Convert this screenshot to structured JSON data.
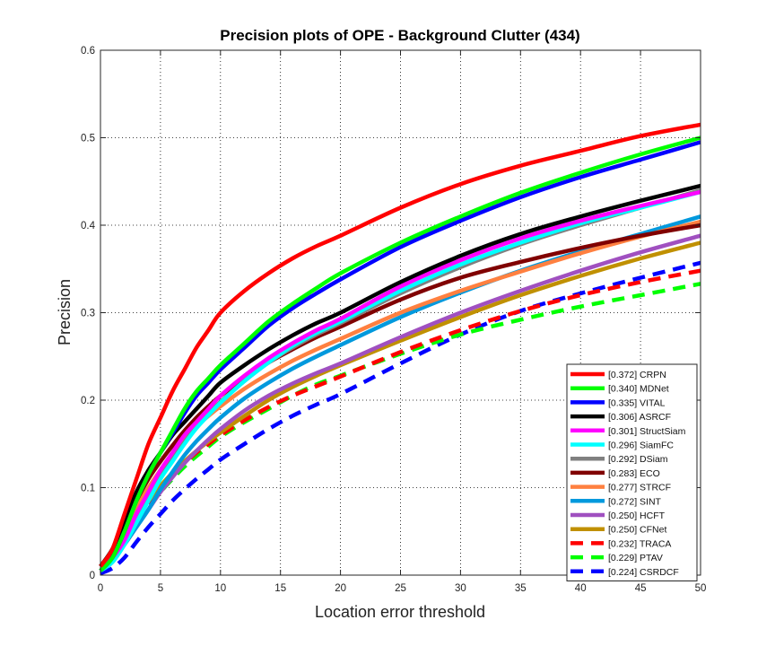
{
  "chart_data": {
    "type": "line",
    "title": "Precision plots of OPE - Background Clutter (434)",
    "xlabel": "Location error threshold",
    "ylabel": "Precision",
    "xlim": [
      0,
      50
    ],
    "ylim": [
      0,
      0.6
    ],
    "xticks": [
      0,
      5,
      10,
      15,
      20,
      25,
      30,
      35,
      40,
      45,
      50
    ],
    "yticks": [
      0,
      0.1,
      0.2,
      0.3,
      0.4,
      0.5,
      0.6
    ],
    "grid": true,
    "legend_position": "bottom-right",
    "x": [
      0,
      1,
      2,
      3,
      4,
      5,
      6,
      7,
      8,
      9,
      10,
      12,
      14,
      16,
      18,
      20,
      25,
      30,
      35,
      40,
      45,
      50
    ],
    "series": [
      {
        "label": "[0.372] CRPN",
        "color": "#ff0000",
        "style": "solid",
        "values": [
          0.01,
          0.03,
          0.07,
          0.11,
          0.15,
          0.18,
          0.21,
          0.235,
          0.26,
          0.28,
          0.3,
          0.325,
          0.345,
          0.362,
          0.376,
          0.388,
          0.42,
          0.447,
          0.468,
          0.485,
          0.502,
          0.515
        ]
      },
      {
        "label": "[0.340] MDNet",
        "color": "#00ff00",
        "style": "solid",
        "values": [
          0.005,
          0.02,
          0.05,
          0.085,
          0.115,
          0.14,
          0.165,
          0.19,
          0.21,
          0.225,
          0.24,
          0.265,
          0.29,
          0.31,
          0.328,
          0.345,
          0.38,
          0.41,
          0.437,
          0.46,
          0.481,
          0.5
        ]
      },
      {
        "label": "[0.335] VITAL",
        "color": "#0000ff",
        "style": "solid",
        "values": [
          0.005,
          0.02,
          0.05,
          0.085,
          0.115,
          0.14,
          0.162,
          0.185,
          0.205,
          0.22,
          0.235,
          0.26,
          0.285,
          0.305,
          0.322,
          0.338,
          0.375,
          0.405,
          0.432,
          0.455,
          0.475,
          0.495
        ]
      },
      {
        "label": "[0.306] ASRCF",
        "color": "#000000",
        "style": "solid",
        "values": [
          0.01,
          0.03,
          0.06,
          0.095,
          0.12,
          0.14,
          0.16,
          0.175,
          0.19,
          0.205,
          0.22,
          0.24,
          0.258,
          0.274,
          0.288,
          0.3,
          0.335,
          0.365,
          0.39,
          0.41,
          0.428,
          0.445
        ]
      },
      {
        "label": "[0.301] StructSiam",
        "color": "#ff00ff",
        "style": "solid",
        "values": [
          0.005,
          0.02,
          0.04,
          0.07,
          0.095,
          0.12,
          0.14,
          0.16,
          0.175,
          0.19,
          0.205,
          0.228,
          0.248,
          0.265,
          0.28,
          0.293,
          0.33,
          0.36,
          0.385,
          0.405,
          0.422,
          0.438
        ]
      },
      {
        "label": "[0.296] SiamFC",
        "color": "#00ffff",
        "style": "solid",
        "values": [
          0.005,
          0.015,
          0.035,
          0.06,
          0.085,
          0.11,
          0.13,
          0.15,
          0.168,
          0.183,
          0.197,
          0.222,
          0.243,
          0.262,
          0.277,
          0.29,
          0.325,
          0.355,
          0.38,
          0.402,
          0.42,
          0.438
        ]
      },
      {
        "label": "[0.292] DSiam",
        "color": "#808080",
        "style": "solid",
        "values": [
          0.005,
          0.018,
          0.04,
          0.065,
          0.09,
          0.113,
          0.133,
          0.152,
          0.17,
          0.185,
          0.198,
          0.222,
          0.243,
          0.26,
          0.275,
          0.288,
          0.322,
          0.352,
          0.378,
          0.4,
          0.42,
          0.44
        ]
      },
      {
        "label": "[0.283] ECO",
        "color": "#800000",
        "style": "solid",
        "values": [
          0.01,
          0.025,
          0.055,
          0.085,
          0.11,
          0.13,
          0.148,
          0.165,
          0.18,
          0.193,
          0.205,
          0.225,
          0.243,
          0.258,
          0.272,
          0.284,
          0.315,
          0.34,
          0.358,
          0.374,
          0.388,
          0.4
        ]
      },
      {
        "label": "[0.277] STRCF",
        "color": "#ff8040",
        "style": "solid",
        "values": [
          0.01,
          0.025,
          0.05,
          0.078,
          0.1,
          0.12,
          0.138,
          0.155,
          0.17,
          0.182,
          0.193,
          0.213,
          0.23,
          0.245,
          0.258,
          0.27,
          0.3,
          0.325,
          0.347,
          0.368,
          0.387,
          0.404
        ]
      },
      {
        "label": "[0.272] SINT",
        "color": "#0099dd",
        "style": "solid",
        "values": [
          0.005,
          0.015,
          0.035,
          0.055,
          0.075,
          0.098,
          0.118,
          0.137,
          0.153,
          0.167,
          0.18,
          0.202,
          0.22,
          0.236,
          0.25,
          0.263,
          0.295,
          0.323,
          0.348,
          0.37,
          0.39,
          0.41
        ]
      },
      {
        "label": "[0.250] HCFT",
        "color": "#a050c0",
        "style": "solid",
        "values": [
          0.005,
          0.018,
          0.035,
          0.055,
          0.075,
          0.095,
          0.112,
          0.128,
          0.142,
          0.155,
          0.167,
          0.188,
          0.205,
          0.219,
          0.231,
          0.242,
          0.272,
          0.3,
          0.325,
          0.348,
          0.369,
          0.388
        ]
      },
      {
        "label": "[0.250] CFNet",
        "color": "#c09000",
        "style": "solid",
        "values": [
          0.005,
          0.018,
          0.04,
          0.065,
          0.085,
          0.102,
          0.117,
          0.13,
          0.142,
          0.153,
          0.163,
          0.182,
          0.2,
          0.215,
          0.228,
          0.24,
          0.268,
          0.295,
          0.32,
          0.342,
          0.362,
          0.38
        ]
      },
      {
        "label": "[0.232] TRACA",
        "color": "#ff0000",
        "style": "dashed",
        "values": [
          0.005,
          0.02,
          0.04,
          0.062,
          0.083,
          0.1,
          0.115,
          0.128,
          0.14,
          0.15,
          0.16,
          0.177,
          0.192,
          0.205,
          0.216,
          0.227,
          0.255,
          0.28,
          0.302,
          0.32,
          0.335,
          0.348
        ]
      },
      {
        "label": "[0.229] PTAV",
        "color": "#00ff00",
        "style": "dashed",
        "values": [
          0.005,
          0.018,
          0.038,
          0.058,
          0.078,
          0.095,
          0.11,
          0.124,
          0.136,
          0.147,
          0.158,
          0.175,
          0.19,
          0.205,
          0.218,
          0.228,
          0.253,
          0.275,
          0.292,
          0.307,
          0.32,
          0.333
        ]
      },
      {
        "label": "[0.224] CSRDCF",
        "color": "#0000ff",
        "style": "dashed",
        "values": [
          0.002,
          0.008,
          0.02,
          0.038,
          0.055,
          0.07,
          0.085,
          0.098,
          0.11,
          0.121,
          0.132,
          0.15,
          0.167,
          0.182,
          0.195,
          0.207,
          0.242,
          0.275,
          0.302,
          0.322,
          0.34,
          0.357
        ]
      }
    ]
  }
}
